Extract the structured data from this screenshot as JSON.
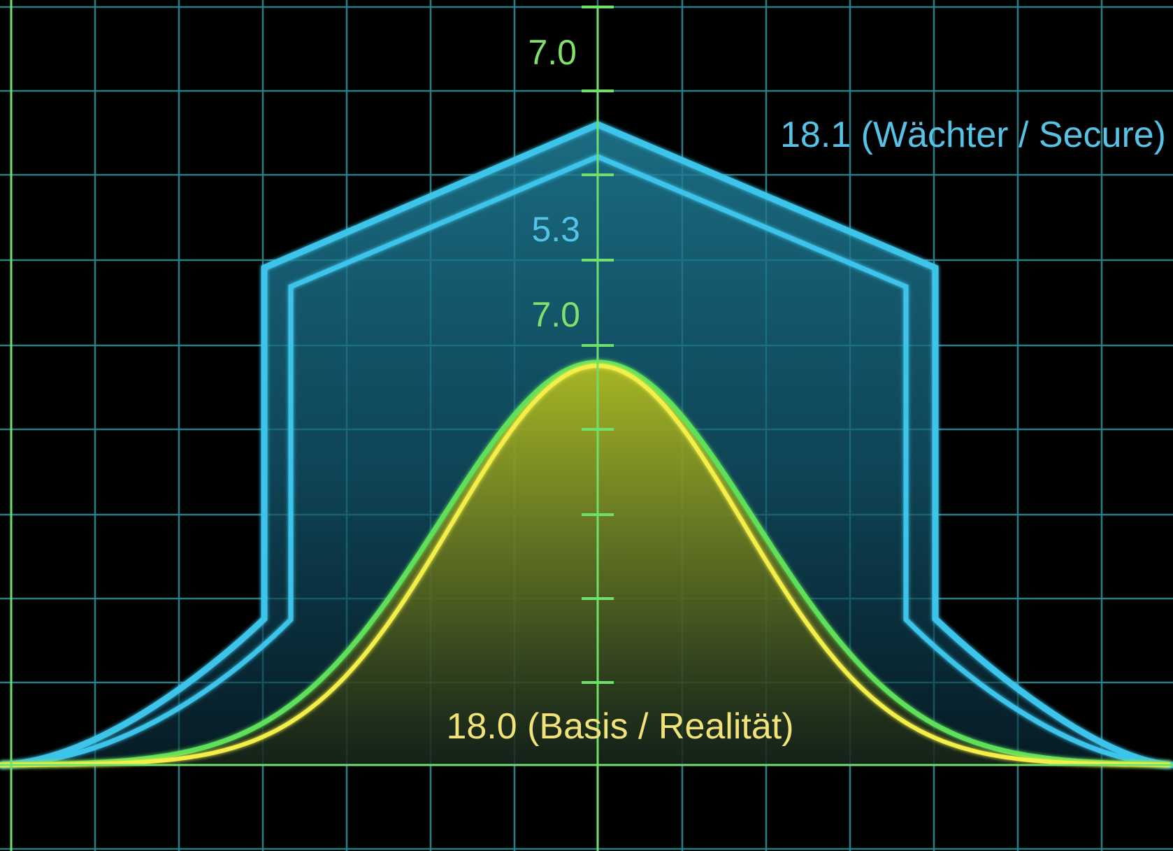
{
  "chart_data": {
    "type": "area",
    "title": "",
    "xlabel": "",
    "ylabel": "",
    "grid": true,
    "y_tick_labels": [
      {
        "text": "7.0",
        "color": "#7fe06a"
      },
      {
        "text": "5.3",
        "color": "#56c2e6"
      },
      {
        "text": "7.0",
        "color": "#7fe06a"
      }
    ],
    "annotations": [
      {
        "text": "18.1 (Wächter / Secure)",
        "color": "#56c2e6"
      },
      {
        "text": "18.0 (Basis / Realität)",
        "color": "#f2e27a"
      }
    ]
  },
  "colors": {
    "background": "#000000",
    "grid": "#2a7f86",
    "axis": "#6fe06a",
    "secure": "#3cc4ea",
    "basis_green": "#5fe05a",
    "basis_yellow": "#f4ee48"
  }
}
